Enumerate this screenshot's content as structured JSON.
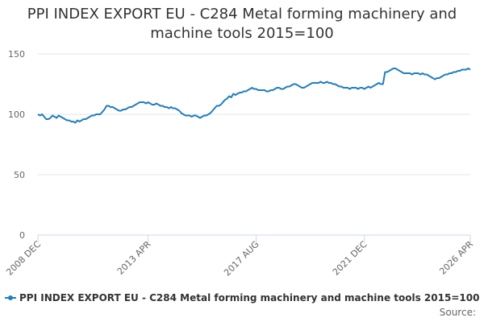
{
  "chart_data": {
    "type": "line",
    "title": "PPI INDEX EXPORT EU - C284 Metal forming machinery and machine tools 2015=100",
    "source": "Source:",
    "categories": [
      "2008 DEC",
      null,
      null,
      null,
      null,
      null,
      null,
      null,
      null,
      null,
      null,
      null,
      null,
      null,
      null,
      null,
      null,
      null,
      null,
      null,
      null,
      null,
      null,
      null,
      null,
      null,
      null,
      null,
      null,
      null,
      null,
      null,
      null,
      null,
      null,
      null,
      null,
      null,
      null,
      null,
      null,
      null,
      null,
      null,
      null,
      null,
      null,
      null,
      null,
      null,
      null,
      null,
      null,
      "2013 APR",
      null,
      null,
      null,
      null,
      null,
      null,
      null,
      null,
      null,
      null,
      null,
      null,
      null,
      null,
      null,
      null,
      null,
      null,
      null,
      null,
      null,
      null,
      null,
      null,
      null,
      null,
      null,
      null,
      null,
      null,
      null,
      null,
      null,
      null,
      null,
      null,
      null,
      null,
      null,
      null,
      null,
      null,
      null,
      null,
      null,
      null,
      null,
      null,
      null,
      null,
      null,
      "2017 AUG",
      null,
      null,
      null,
      null,
      null,
      null,
      null,
      null,
      null,
      null,
      null,
      null,
      null,
      null,
      null,
      null,
      null,
      null,
      null,
      null,
      null,
      null,
      null,
      null,
      null,
      null,
      null,
      null,
      null,
      null,
      null,
      null,
      null,
      null,
      null,
      null,
      null,
      null,
      null,
      null,
      null,
      null,
      null,
      null,
      null,
      null,
      null,
      null,
      null,
      null,
      null,
      "2021 DEC",
      null,
      null,
      null,
      null,
      null,
      null,
      null,
      null,
      null,
      null,
      null,
      null,
      null,
      null,
      null,
      null,
      null,
      null,
      null,
      null,
      null,
      null,
      null,
      null,
      null,
      null,
      null,
      null,
      null,
      null,
      null,
      null,
      null,
      null,
      null,
      null,
      null,
      null,
      null,
      null,
      null,
      null,
      null,
      null,
      null,
      null,
      null,
      null,
      null,
      null,
      "2026 APR"
    ],
    "series": [
      {
        "name": "PPI INDEX EXPORT EU - C284 Metal forming machinery and machine tools 2015=100",
        "color": "#1f7ec1",
        "values": [
          100,
          99,
          100,
          98,
          96,
          96,
          97,
          99,
          98,
          97,
          99,
          98,
          97,
          96,
          95,
          95,
          94,
          94,
          93,
          95,
          94,
          95,
          96,
          96,
          97,
          98,
          99,
          99,
          100,
          100,
          100,
          102,
          104,
          107,
          107,
          106,
          106,
          105,
          104,
          103,
          103,
          104,
          104,
          105,
          106,
          106,
          107,
          108,
          109,
          110,
          110,
          110,
          109,
          110,
          109,
          108,
          108,
          109,
          108,
          107,
          107,
          106,
          106,
          105,
          106,
          105,
          105,
          104,
          103,
          101,
          100,
          99,
          99,
          99,
          98,
          99,
          99,
          98,
          97,
          98,
          99,
          99,
          100,
          101,
          103,
          105,
          107,
          107,
          108,
          110,
          112,
          113,
          115,
          114,
          117,
          116,
          117,
          118,
          118,
          119,
          119,
          120,
          121,
          122,
          121,
          121,
          120,
          120,
          120,
          120,
          119,
          119,
          120,
          120,
          121,
          122,
          122,
          121,
          121,
          122,
          123,
          123,
          124,
          125,
          125,
          124,
          123,
          122,
          122,
          123,
          124,
          125,
          126,
          126,
          126,
          126,
          127,
          126,
          126,
          127,
          126,
          126,
          125,
          125,
          124,
          123,
          123,
          122,
          122,
          122,
          121,
          122,
          122,
          122,
          121,
          122,
          122,
          121,
          122,
          123,
          122,
          123,
          124,
          125,
          126,
          125,
          125,
          135,
          135,
          136,
          137,
          138,
          138,
          137,
          136,
          135,
          134,
          134,
          134,
          134,
          133,
          134,
          134,
          134,
          133,
          134,
          133,
          133,
          132,
          131,
          130,
          129,
          130,
          130,
          131,
          132,
          133,
          133,
          134,
          134,
          135,
          135,
          136,
          136,
          137,
          137,
          137,
          138,
          137
        ]
      }
    ],
    "ylim": [
      0,
      150
    ],
    "yticks": [
      0,
      50,
      100,
      150
    ],
    "grid": true
  }
}
